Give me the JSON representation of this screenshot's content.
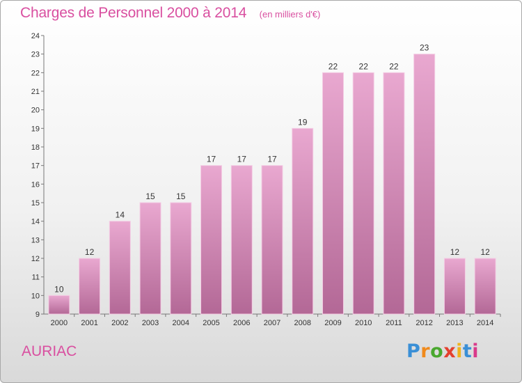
{
  "chart_data": {
    "type": "bar",
    "title": "Charges de Personnel 2000 à 2014",
    "subtitle": "(en milliers d'€)",
    "xlabel": "",
    "ylabel": "",
    "categories": [
      "2000",
      "2001",
      "2002",
      "2003",
      "2004",
      "2005",
      "2006",
      "2007",
      "2008",
      "2009",
      "2010",
      "2011",
      "2012",
      "2013",
      "2014"
    ],
    "values": [
      10,
      12,
      14,
      15,
      15,
      17,
      17,
      17,
      19,
      22,
      22,
      22,
      23,
      12,
      12
    ],
    "ylim": [
      9,
      24
    ],
    "yticks": [
      9,
      10,
      11,
      12,
      13,
      14,
      15,
      16,
      17,
      18,
      19,
      20,
      21,
      22,
      23,
      24
    ],
    "grid": false,
    "legend": "none",
    "colors": {
      "bar_top": "#e9a8d0",
      "bar_bottom": "#b36896",
      "bar_edge": "#f4cde4",
      "accent": "#d94fa0"
    }
  },
  "place_name": "AURIAC",
  "logo": {
    "text": "Proxiti",
    "letters": [
      "P",
      "r",
      "o",
      "x",
      "i",
      "t",
      "i"
    ],
    "colors": [
      "#3a8fd6",
      "#f08a1c",
      "#4aa82f",
      "#e4402e",
      "#f0b31c",
      "#3a8fd6",
      "#d93a8a"
    ]
  }
}
